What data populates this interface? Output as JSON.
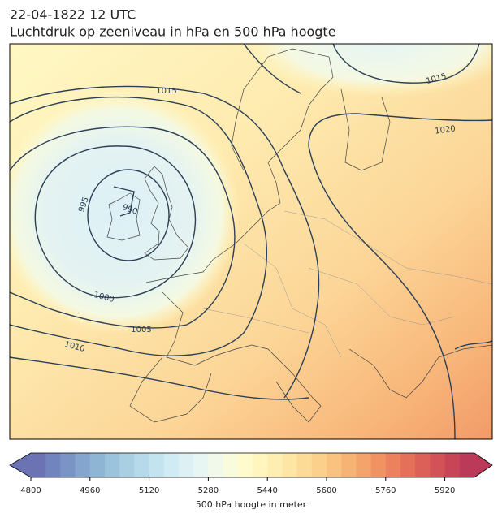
{
  "title": {
    "line1": "22-04-1822 12 UTC",
    "line2": "Luchtdruk op zeeniveau in hPa en 500 hPa hoogte"
  },
  "isobar_labels": [
    1015,
    1015,
    1020,
    995,
    990,
    1000,
    1005,
    1010
  ],
  "colorbar": {
    "range": [
      4800,
      6000
    ],
    "ticks": [
      4800,
      4960,
      5120,
      5280,
      5440,
      5600,
      5760,
      5920
    ],
    "label": "500 hPa hoogte in meter",
    "colors": [
      "#6b73b5",
      "#7284bd",
      "#7a95c5",
      "#84a5cd",
      "#8fb5d5",
      "#9cc3dc",
      "#a9cfe3",
      "#b6dae9",
      "#c3e3ef",
      "#d0ebf3",
      "#ddf1f5",
      "#e8f6f3",
      "#f1f9ea",
      "#f8fbdc",
      "#fffbcc",
      "#fff5bf",
      "#feeeb2",
      "#fde5a4",
      "#fcdb97",
      "#fbd08a",
      "#f9c27e",
      "#f7b373",
      "#f4a36a",
      "#f09262",
      "#eb815d",
      "#e57059",
      "#dc6057",
      "#d35257",
      "#c84558",
      "#bb3a5a"
    ]
  }
}
